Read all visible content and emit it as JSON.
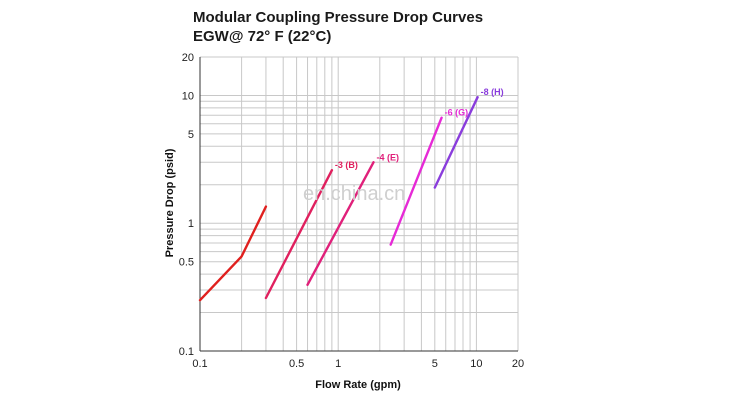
{
  "chart_data": {
    "type": "line",
    "title": "Modular Coupling Pressure Drop Curves",
    "subtitle": "EGW@ 72° F (22°C)",
    "xlabel": "Flow Rate (gpm)",
    "ylabel": "Pressure Drop (psid)",
    "x_scale": "log",
    "y_scale": "log",
    "xlim": [
      0.1,
      20
    ],
    "ylim": [
      0.1,
      20
    ],
    "x_ticks": [
      0.1,
      0.5,
      1,
      5,
      10,
      20
    ],
    "x_tick_labels": [
      "0.1",
      "0.5",
      "1",
      "5",
      "10",
      "20"
    ],
    "y_ticks": [
      0.1,
      0.5,
      1,
      5,
      10,
      20
    ],
    "y_tick_labels": [
      "0.1",
      "0.5",
      "1",
      "5",
      "10",
      "20"
    ],
    "grid": true,
    "series": [
      {
        "name": "",
        "color": "#e0201e",
        "x": [
          0.1,
          0.2,
          0.3
        ],
        "y": [
          0.25,
          0.55,
          1.35
        ]
      },
      {
        "name": "-3 (B)",
        "color": "#e0205e",
        "x": [
          0.3,
          0.9
        ],
        "y": [
          0.26,
          2.6
        ]
      },
      {
        "name": "-4 (E)",
        "color": "#e0207a",
        "x": [
          0.6,
          1.8
        ],
        "y": [
          0.33,
          3.0
        ]
      },
      {
        "name": "-6 (G)",
        "color": "#e62ad6",
        "x": [
          2.4,
          5.6
        ],
        "y": [
          0.68,
          6.7
        ]
      },
      {
        "name": "-8 (H)",
        "color": "#8a3ddc",
        "x": [
          5.0,
          10.2
        ],
        "y": [
          1.9,
          9.7
        ]
      }
    ]
  },
  "watermark": "en.china.cn"
}
